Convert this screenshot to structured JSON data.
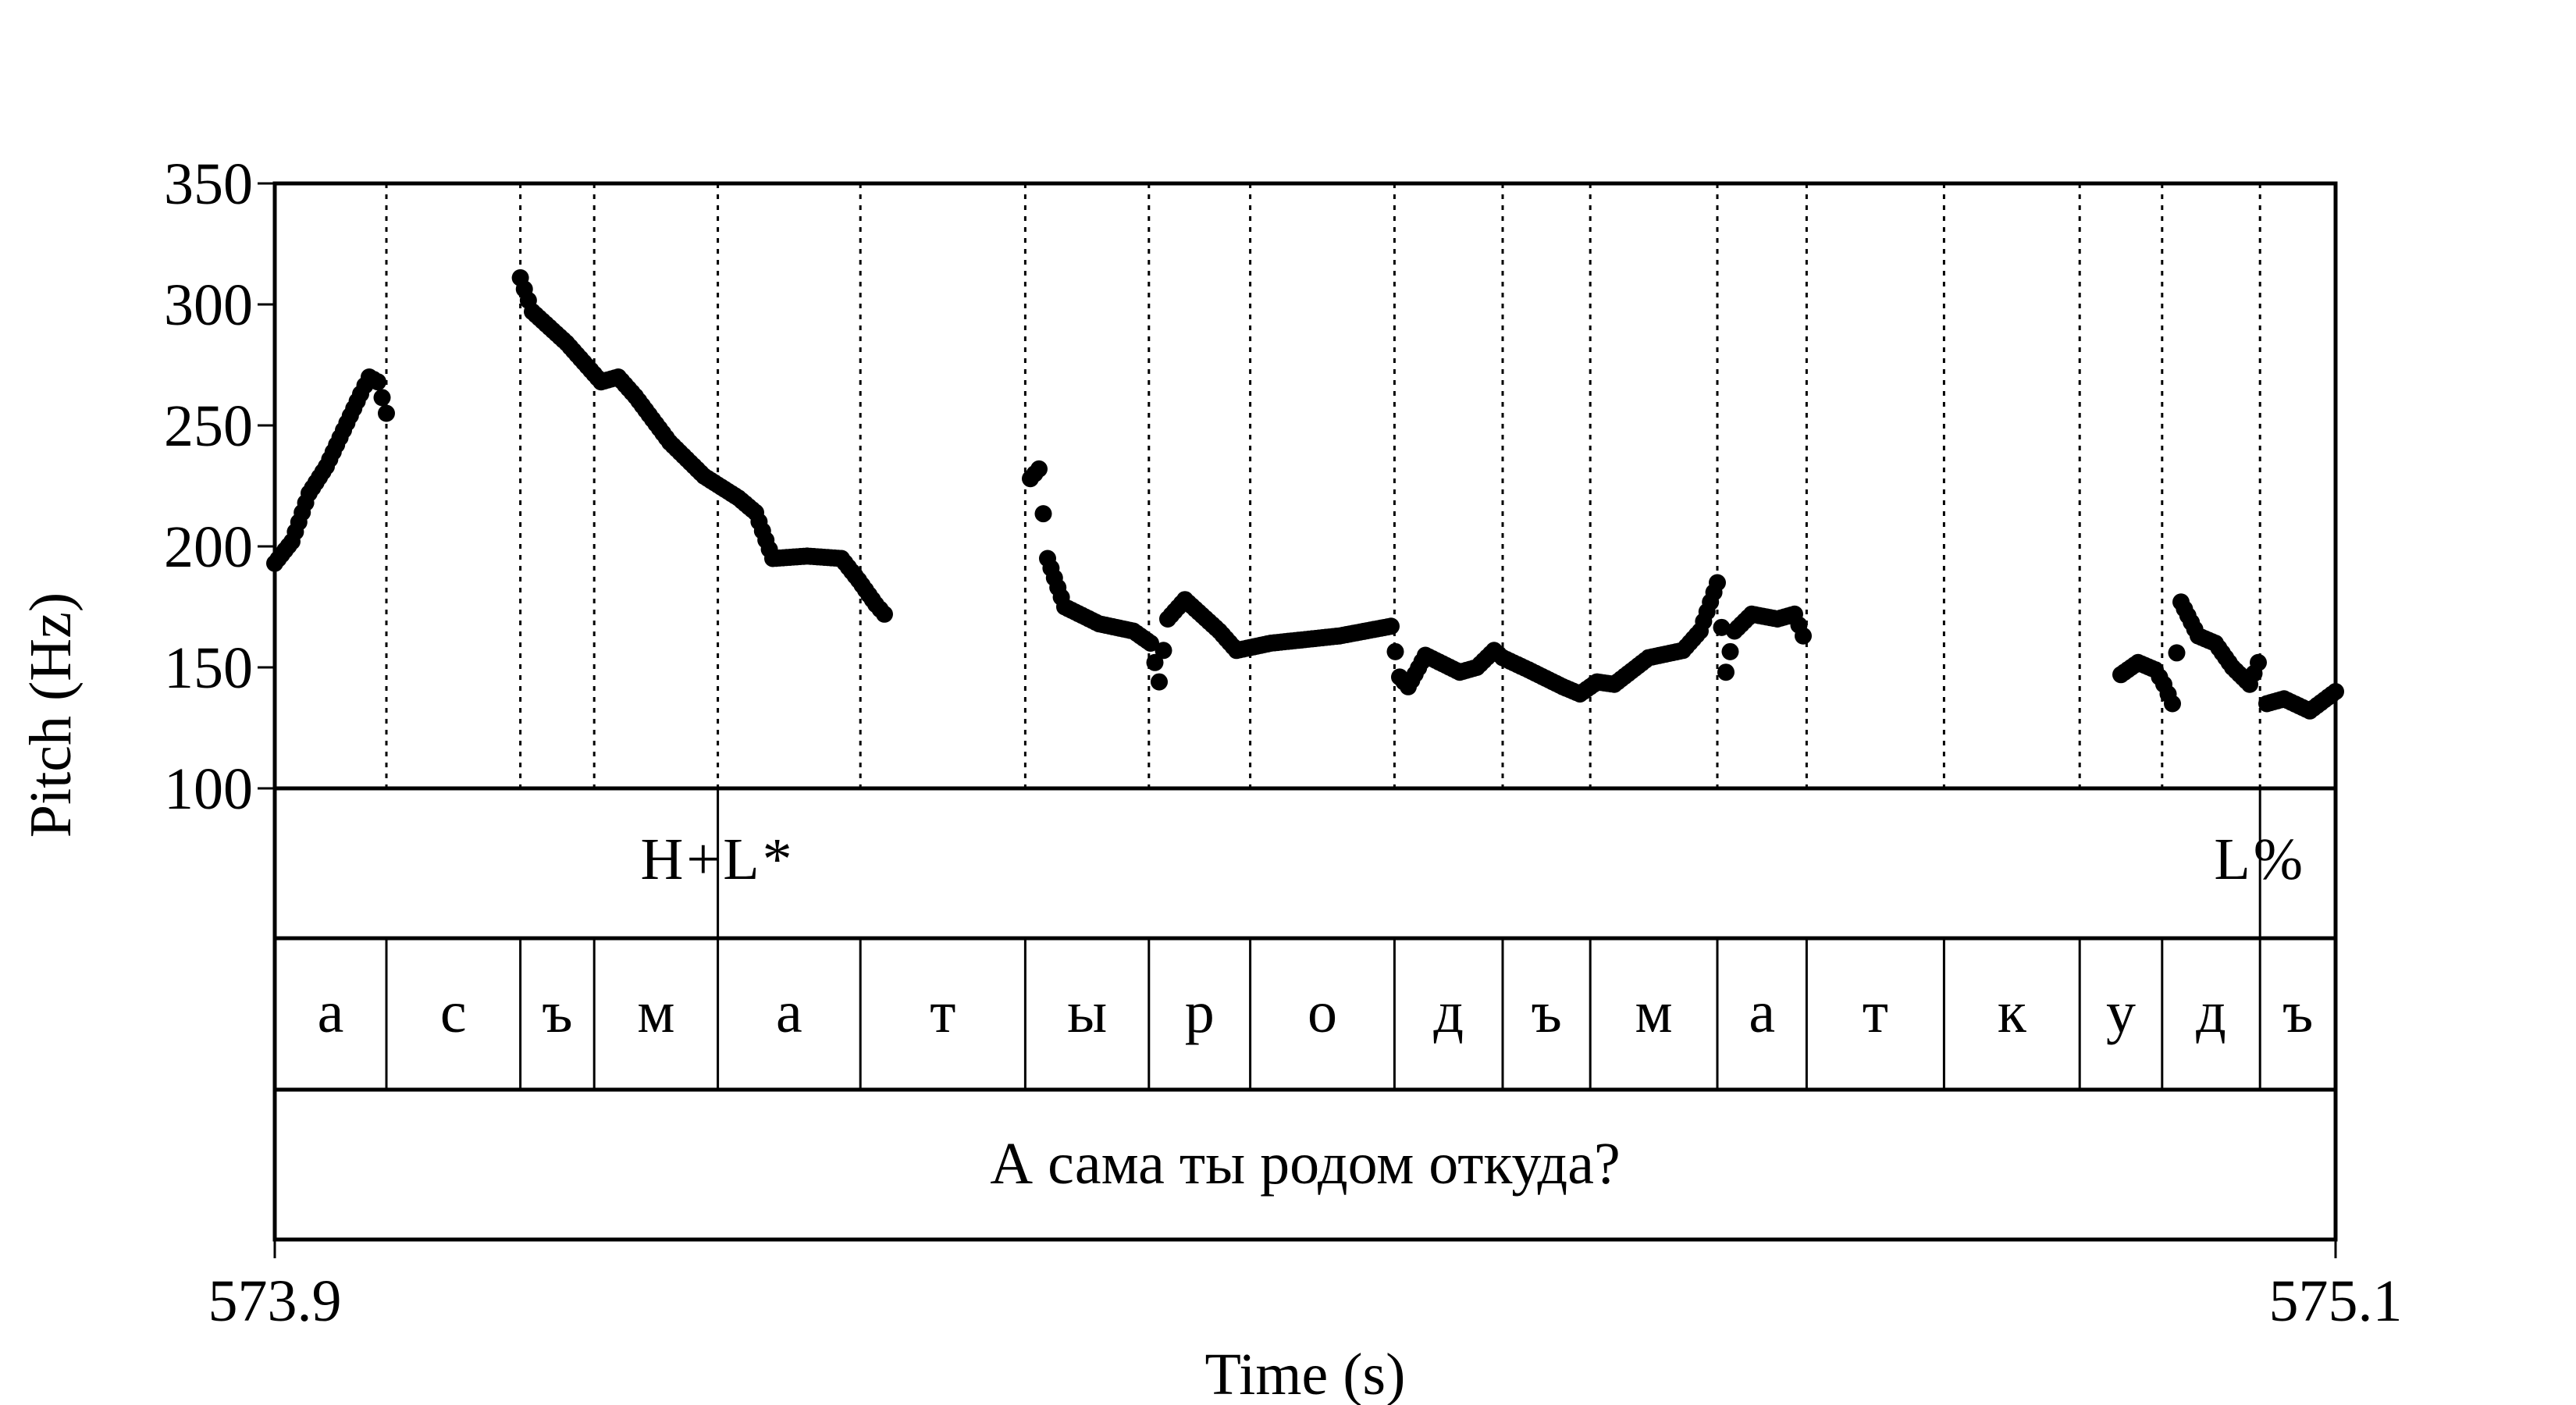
{
  "chart_data": {
    "type": "scatter",
    "xlabel": "Time (s)",
    "ylabel": "Pitch (Hz)",
    "xlim": [
      573.9,
      575.1
    ],
    "ylim": [
      100,
      350
    ],
    "x_ticks": [
      "573.9",
      "575.1"
    ],
    "y_ticks": [
      100,
      150,
      200,
      250,
      300,
      350
    ],
    "boundaries": [
      573.965,
      574.043,
      574.086,
      574.158,
      574.241,
      574.337,
      574.409,
      574.468,
      574.552,
      574.615,
      574.666,
      574.74,
      574.792,
      574.872,
      574.951,
      574.999,
      575.056
    ],
    "segments": [
      "а",
      "с",
      "ъ",
      "м",
      "а",
      "т",
      "ы",
      "р",
      "о",
      "д",
      "ъ",
      "м",
      "а",
      "т",
      "к",
      "у",
      "д",
      "ъ"
    ],
    "tones": [
      {
        "x": 574.158,
        "label": "H+L*"
      },
      {
        "x": 575.056,
        "label": "L%"
      }
    ],
    "sentence": "А сама ты родом откуда?",
    "pitch_segments": [
      [
        [
          573.9,
          193
        ],
        [
          573.91,
          202
        ],
        [
          573.92,
          222
        ],
        [
          573.93,
          233
        ],
        [
          573.94,
          248
        ],
        [
          573.95,
          263
        ],
        [
          573.955,
          270
        ],
        [
          573.96,
          268
        ],
        [
          573.965,
          255
        ]
      ],
      [
        [
          574.043,
          311
        ],
        [
          574.05,
          297
        ],
        [
          574.07,
          284
        ],
        [
          574.09,
          268
        ],
        [
          574.1,
          270
        ],
        [
          574.11,
          262
        ],
        [
          574.13,
          243
        ],
        [
          574.15,
          229
        ],
        [
          574.17,
          220
        ],
        [
          574.18,
          214
        ],
        [
          574.19,
          195
        ],
        [
          574.21,
          196
        ],
        [
          574.23,
          195
        ],
        [
          574.24,
          186
        ],
        [
          574.25,
          176
        ],
        [
          574.255,
          172
        ]
      ],
      [
        [
          574.34,
          228
        ],
        [
          574.345,
          232
        ],
        [
          574.35,
          195
        ],
        [
          574.36,
          175
        ],
        [
          574.38,
          168
        ],
        [
          574.4,
          165
        ],
        [
          574.41,
          160
        ],
        [
          574.415,
          144
        ],
        [
          574.42,
          170
        ],
        [
          574.43,
          178
        ],
        [
          574.45,
          165
        ],
        [
          574.46,
          157
        ],
        [
          574.48,
          160
        ],
        [
          574.52,
          163
        ],
        [
          574.55,
          167
        ],
        [
          574.555,
          146
        ],
        [
          574.56,
          142
        ],
        [
          574.57,
          155
        ],
        [
          574.59,
          148
        ],
        [
          574.6,
          150
        ],
        [
          574.61,
          157
        ],
        [
          574.615,
          154
        ],
        [
          574.63,
          149
        ],
        [
          574.65,
          142
        ],
        [
          574.66,
          139
        ],
        [
          574.67,
          144
        ],
        [
          574.68,
          143
        ],
        [
          574.7,
          154
        ],
        [
          574.72,
          157
        ],
        [
          574.73,
          165
        ],
        [
          574.74,
          185
        ],
        [
          574.745,
          148
        ],
        [
          574.75,
          165
        ],
        [
          574.76,
          172
        ],
        [
          574.775,
          170
        ],
        [
          574.785,
          172
        ],
        [
          574.79,
          163
        ]
      ],
      [
        [
          574.975,
          147
        ],
        [
          574.985,
          152
        ],
        [
          574.995,
          149
        ],
        [
          575.0,
          143
        ],
        [
          575.005,
          135
        ],
        [
          575.01,
          177
        ],
        [
          575.02,
          163
        ],
        [
          575.03,
          160
        ],
        [
          575.04,
          150
        ],
        [
          575.05,
          143
        ],
        [
          575.055,
          152
        ]
      ],
      [
        [
          575.06,
          135
        ],
        [
          575.07,
          137
        ],
        [
          575.085,
          132
        ],
        [
          575.1,
          140
        ]
      ]
    ]
  }
}
